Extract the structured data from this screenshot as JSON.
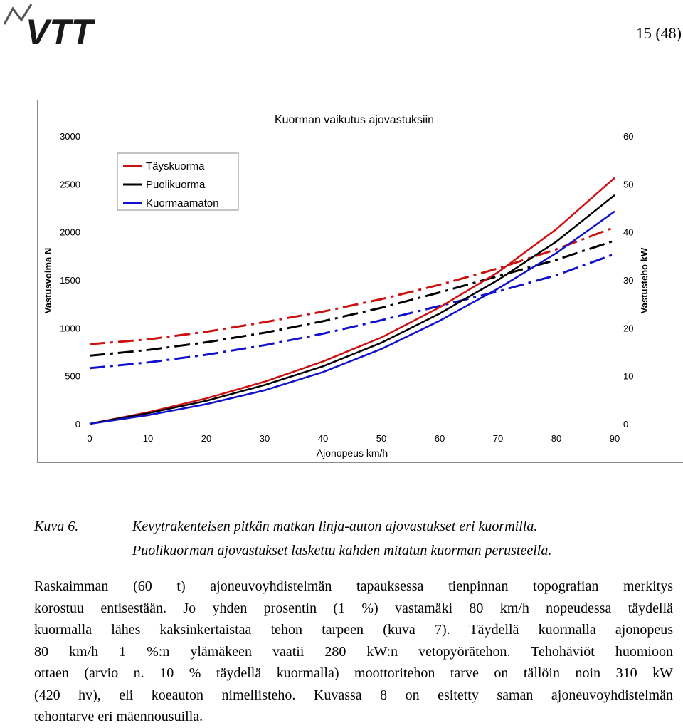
{
  "header": {
    "logo_text": "VTT",
    "page_number": "15 (48)"
  },
  "chart_data": {
    "type": "line",
    "title": "Kuorman vaikutus ajovastuksiin",
    "xlabel": "Ajonopeus km/h",
    "ylabel_left": "Vastusvoima N",
    "ylabel_right": "Vastusteho kW",
    "xlim": [
      0,
      90
    ],
    "ylim_left": [
      0,
      3000
    ],
    "ylim_right": [
      0,
      60
    ],
    "x_ticks": [
      "0",
      "10",
      "20",
      "30",
      "40",
      "50",
      "60",
      "70",
      "80",
      "90"
    ],
    "y_ticks_left": [
      "0",
      "500",
      "1000",
      "1500",
      "2000",
      "2500",
      "3000"
    ],
    "y_ticks_right": [
      "0",
      "10",
      "20",
      "30",
      "40",
      "50",
      "60"
    ],
    "legend": [
      "Täyskuorma",
      "Puolikuorma",
      "Kuormaamaton"
    ],
    "legend_position": "top-left",
    "colors": {
      "full": "#cc1111",
      "half": "#000000",
      "empty": "#1111cc"
    },
    "x": [
      0,
      10,
      20,
      30,
      40,
      50,
      60,
      70,
      80,
      90
    ],
    "series_force": [
      {
        "name": "Täyskuorma",
        "axis": "left",
        "style": "dashdot",
        "values": [
          830,
          880,
          960,
          1060,
          1170,
          1300,
          1450,
          1620,
          1820,
          2050
        ]
      },
      {
        "name": "Puolikuorma",
        "axis": "left",
        "style": "dashdot",
        "values": [
          710,
          770,
          850,
          950,
          1070,
          1210,
          1370,
          1540,
          1710,
          1910
        ]
      },
      {
        "name": "Kuormaamaton",
        "axis": "left",
        "style": "dashdot",
        "values": [
          580,
          640,
          720,
          820,
          940,
          1080,
          1230,
          1380,
          1550,
          1770
        ]
      }
    ],
    "series_power": [
      {
        "name": "Täyskuorma",
        "axis": "right",
        "style": "solid",
        "values": [
          0,
          2.4,
          5.3,
          8.8,
          13,
          18,
          24.3,
          31.6,
          40.6,
          51.3
        ]
      },
      {
        "name": "Puolikuorma",
        "axis": "right",
        "style": "solid",
        "values": [
          0,
          2.2,
          4.8,
          8.1,
          12,
          16.9,
          23,
          30,
          38,
          47.7
        ]
      },
      {
        "name": "Kuormaamaton",
        "axis": "right",
        "style": "solid",
        "values": [
          0,
          1.8,
          4.1,
          7,
          10.8,
          15.6,
          21.5,
          28.2,
          35.6,
          44.3
        ]
      }
    ]
  },
  "caption": {
    "label": "Kuva 6.",
    "lines": [
      "Kevytrakenteisen pitkän matkan linja-auton ajovastukset eri kuormilla.",
      "Puolikuorman ajovastukset laskettu kahden mitatun kuorman perusteella."
    ]
  },
  "body": {
    "lines": [
      "Raskaimman (60 t) ajoneuvoyhdistelmän tapauksessa tienpinnan topografian merkitys",
      "korostuu entisestään. Jo yhden prosentin (1 %) vastamäki 80 km/h nopeudessa täydellä",
      "kuormalla lähes kaksinkertaistaa tehon tarpeen (kuva 7). Täydellä kuormalla ajonopeus",
      "80 km/h 1 %:n ylämäkeen vaatii 280 kW:n vetopyörätehon. Tehohäviöt huomioon",
      "ottaen (arvio n. 10 % täydellä kuormalla) moottoritehon tarve on tällöin noin 310 kW",
      "(420 hv), eli koeauton nimellisteho. Kuvassa 8 on esitetty saman ajoneuvoyhdistelmän",
      "tehontarve eri mäennousuilla."
    ]
  }
}
